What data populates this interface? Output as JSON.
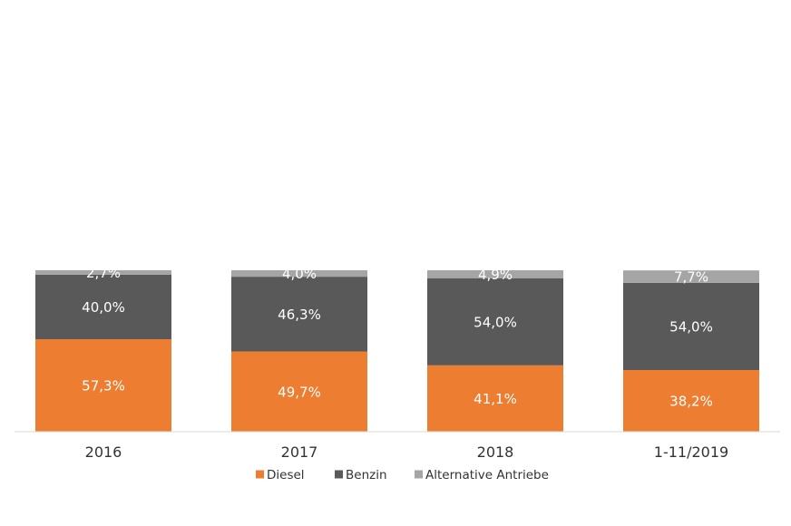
{
  "chart_data": {
    "type": "bar",
    "stacked": true,
    "categories": [
      "2016",
      "2017",
      "2018",
      "1-11/2019"
    ],
    "series": [
      {
        "name": "Diesel",
        "color": "#ed7d31",
        "values": [
          57.3,
          49.7,
          41.1,
          38.2
        ],
        "labels": [
          "57,3%",
          "49,7%",
          "41,1%",
          "38,2%"
        ]
      },
      {
        "name": "Benzin",
        "color": "#595959",
        "values": [
          40.0,
          46.3,
          54.0,
          54.0
        ],
        "labels": [
          "40,0%",
          "46,3%",
          "54,0%",
          "54,0%"
        ]
      },
      {
        "name": "Alternative Antriebe",
        "color": "#a5a5a5",
        "values": [
          2.7,
          4.0,
          4.9,
          7.7
        ],
        "labels": [
          "2,7%",
          "4,0%",
          "4,9%",
          "7,7%"
        ]
      }
    ],
    "bar_totals": [
      100.0,
      100.0,
      100.0,
      100.0
    ],
    "title": "",
    "xlabel": "",
    "ylabel": "",
    "grid": false,
    "legend_position": "bottom"
  }
}
